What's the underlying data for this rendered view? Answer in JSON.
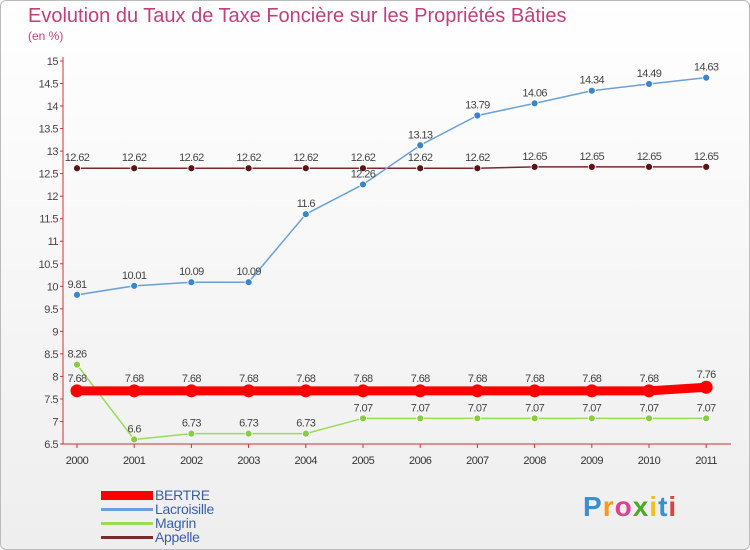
{
  "title": "Evolution du Taux de Taxe Foncière sur les Propriétés Bâties",
  "unit": "(en %)",
  "brand": "Proxiti",
  "chart_data": {
    "type": "line",
    "title": "Evolution du Taux de Taxe Foncière sur les Propriétés Bâties",
    "ylabel": "(en %)",
    "xlabel": "",
    "x": [
      "2000",
      "2001",
      "2002",
      "2003",
      "2004",
      "2005",
      "2006",
      "2007",
      "2008",
      "2009",
      "2010",
      "2011"
    ],
    "ylim": [
      6.5,
      15
    ],
    "yticks": [
      "6.5",
      "7",
      "7.5",
      "8",
      "8.5",
      "9",
      "9.5",
      "10",
      "10.5",
      "11",
      "11.5",
      "12",
      "12.5",
      "13",
      "13.5",
      "14",
      "14.5",
      "15"
    ],
    "grid": false,
    "legend": "bottom-left",
    "series": [
      {
        "name": "BERTRE",
        "color": "#ff0000",
        "values": [
          7.68,
          7.68,
          7.68,
          7.68,
          7.68,
          7.68,
          7.68,
          7.68,
          7.68,
          7.68,
          7.68,
          7.76
        ],
        "labels": [
          "7.68",
          "7.68",
          "7.68",
          "7.68",
          "7.68",
          "7.68",
          "7.68",
          "7.68",
          "7.68",
          "7.68",
          "7.68",
          "7.76"
        ]
      },
      {
        "name": "Lacroisille",
        "color": "#6aa0d8",
        "values": [
          9.81,
          10.01,
          10.09,
          10.09,
          11.6,
          12.26,
          13.13,
          13.79,
          14.06,
          14.34,
          14.49,
          14.63
        ],
        "labels": [
          "9.81",
          "10.01",
          "10.09",
          "10.09",
          "11.6",
          "12.26",
          "13.13",
          "13.79",
          "14.06",
          "14.34",
          "14.49",
          "14.63"
        ]
      },
      {
        "name": "Magrin",
        "color": "#99dd55",
        "values": [
          8.26,
          6.6,
          6.73,
          6.73,
          6.73,
          7.07,
          7.07,
          7.07,
          7.07,
          7.07,
          7.07,
          7.07
        ],
        "labels": [
          "8.26",
          "6.6",
          "6.73",
          "6.73",
          "6.73",
          "7.07",
          "7.07",
          "7.07",
          "7.07",
          "7.07",
          "7.07",
          "7.07"
        ]
      },
      {
        "name": "Appelle",
        "color": "#7a2a2a",
        "values": [
          12.62,
          12.62,
          12.62,
          12.62,
          12.62,
          12.62,
          12.62,
          12.62,
          12.65,
          12.65,
          12.65,
          12.65
        ],
        "labels": [
          "12.62",
          "12.62",
          "12.62",
          "12.62",
          "12.62",
          "12.62",
          "12.62",
          "12.62",
          "12.65",
          "12.65",
          "12.65",
          "12.65"
        ]
      }
    ]
  }
}
